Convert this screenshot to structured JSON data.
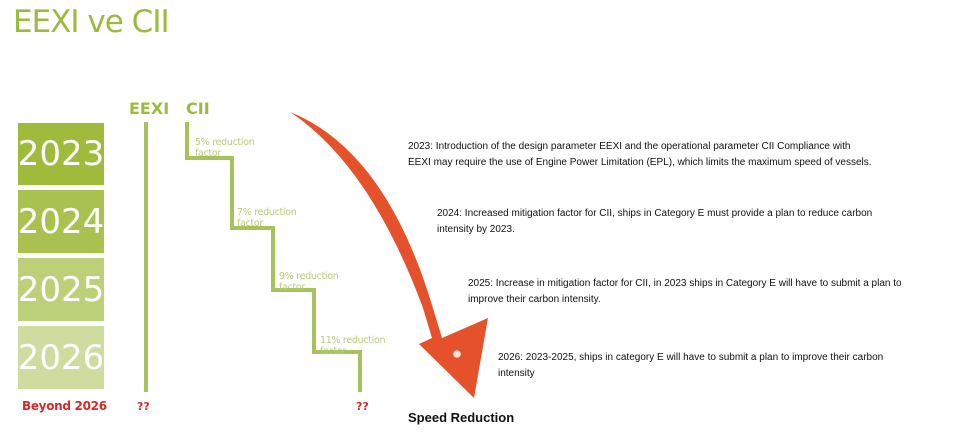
{
  "title": "EEXI ve CII",
  "columns": {
    "eexi": "EEXI",
    "cii": "CII"
  },
  "years": [
    {
      "label": "2023",
      "color": "#9fbb3c"
    },
    {
      "label": "2024",
      "color": "#a9c24f"
    },
    {
      "label": "2025",
      "color": "#bcd07a"
    },
    {
      "label": "2026",
      "color": "#cfdca0"
    }
  ],
  "beyond": "Beyond 2026",
  "unknown_eexi": "??",
  "unknown_cii": "??",
  "steps": [
    {
      "line1": "5% reduction",
      "line2": "factor"
    },
    {
      "line1": "7% reduction",
      "line2": "factor"
    },
    {
      "line1": "9% reduction",
      "line2": "factor"
    },
    {
      "line1": "11% reduction",
      "line2": "factor"
    }
  ],
  "descriptions": [
    {
      "line1": "2023: Introduction of the design parameter EEXI and the operational parameter CII Compliance with",
      "line2": "EEXI may require the use of Engine Power Limitation (EPL), which limits the maximum speed of vessels."
    },
    {
      "line1": "2024: Increased mitigation factor for CII, ships in Category E must provide a plan to reduce carbon",
      "line2": "intensity by 2023."
    },
    {
      "line1": "2025: Increase in mitigation factor for CII, in 2023 ships in Category E will have to submit a plan to",
      "line2": "improve their carbon intensity."
    },
    {
      "line1": "2026: 2023-2025, ships in category E will have to submit a plan to improve their carbon",
      "line2": "intensity"
    }
  ],
  "arrow_label": "Speed Reduction",
  "colors": {
    "green": "#9bbb3f",
    "step_line": "#a7c25a",
    "arrow": "#e5512a",
    "red": "#d42a2a"
  }
}
